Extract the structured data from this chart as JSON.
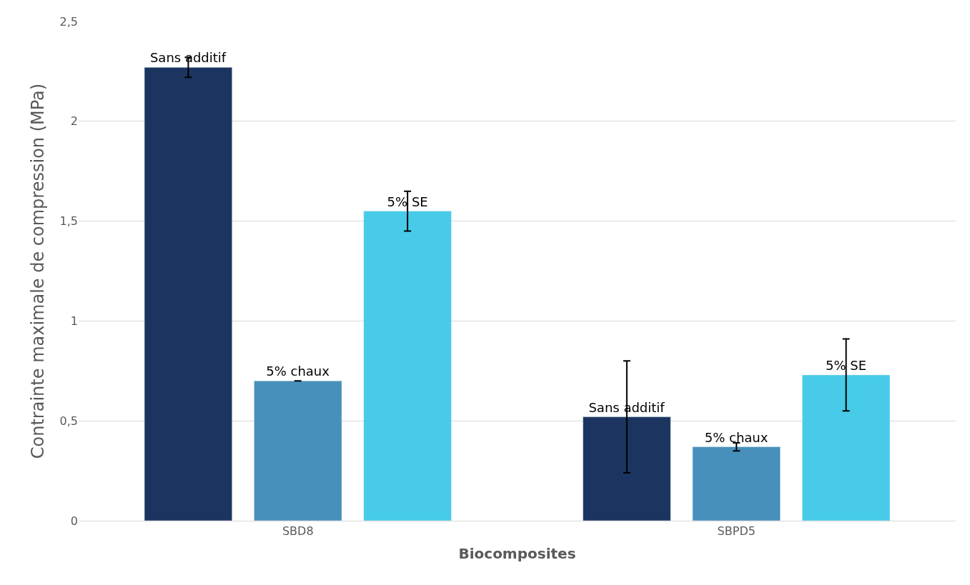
{
  "chart_data": {
    "type": "bar",
    "xlabel": "Biocomposites",
    "ylabel": "Contrainte maximale de compression (MPa)",
    "categories": [
      "SBD8",
      "SBPD5"
    ],
    "series": [
      {
        "name": "Sans additif",
        "color": "#1c3560",
        "values": [
          2.27,
          0.52
        ],
        "errors": [
          0.05,
          0.28
        ]
      },
      {
        "name": "5% chaux",
        "color": "#4690bb",
        "values": [
          0.7,
          0.37
        ],
        "errors": [
          null,
          0.02
        ]
      },
      {
        "name": "5% SE",
        "color": "#47cbe8",
        "values": [
          1.55,
          0.73
        ],
        "errors": [
          0.1,
          0.18
        ]
      }
    ],
    "ylim": [
      0,
      2.5
    ],
    "yticks": [
      0,
      {
        "value": 0.5,
        "label": "0,5"
      },
      1,
      {
        "value": 1.5,
        "label": "1,5"
      },
      2,
      {
        "value": 2.5,
        "label": "2,5"
      }
    ],
    "grid": "y",
    "legend": false
  }
}
